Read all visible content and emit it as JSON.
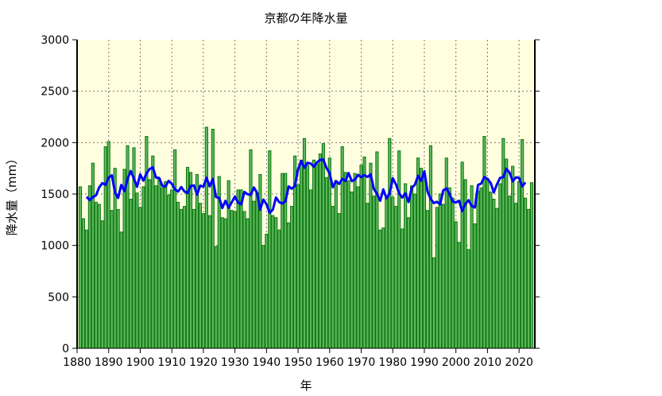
{
  "chart_data": {
    "type": "bar",
    "title": "京都の年降水量",
    "xlabel": "年",
    "ylabel": "降水量（mm）",
    "xlim": [
      1880,
      2025
    ],
    "ylim": [
      0,
      3000
    ],
    "xticks": [
      1880,
      1890,
      1900,
      1910,
      1920,
      1930,
      1940,
      1950,
      1960,
      1970,
      1980,
      1990,
      2000,
      2010,
      2020
    ],
    "yticks": [
      0,
      500,
      1000,
      1500,
      2000,
      2500,
      3000
    ],
    "grid": true,
    "colors": {
      "background": "#ffffe0",
      "bar_fill": "#5cb85c",
      "bar_edge": "#117711",
      "line": "#0000ff"
    },
    "x_start": 1881,
    "values": [
      1570,
      1260,
      1150,
      1580,
      1800,
      1420,
      1400,
      1240,
      1960,
      2010,
      1340,
      1750,
      1350,
      1130,
      1740,
      1970,
      1450,
      1950,
      1510,
      1370,
      1570,
      2060,
      1640,
      1870,
      1580,
      1650,
      1560,
      1620,
      1490,
      1540,
      1930,
      1420,
      1350,
      1380,
      1760,
      1710,
      1350,
      1690,
      1410,
      1310,
      2150,
      1290,
      2130,
      990,
      1670,
      1270,
      1260,
      1630,
      1340,
      1330,
      1540,
      1540,
      1330,
      1260,
      1930,
      1430,
      1510,
      1690,
      1000,
      1110,
      1920,
      1290,
      1270,
      1150,
      1700,
      1700,
      1220,
      1380,
      1870,
      1590,
      1830,
      2040,
      1780,
      1540,
      1830,
      1790,
      1890,
      1990,
      1660,
      1850,
      1380,
      1630,
      1310,
      1960,
      1710,
      1630,
      1520,
      1700,
      1570,
      1780,
      1860,
      1410,
      1800,
      1480,
      1910,
      1150,
      1170,
      1460,
      2040,
      1470,
      1380,
      1920,
      1160,
      1600,
      1270,
      1580,
      1500,
      1850,
      1750,
      1700,
      1340,
      1970,
      880,
      1370,
      1500,
      1400,
      1850,
      1560,
      1460,
      1230,
      1030,
      1810,
      1640,
      960,
      1580,
      1210,
      1530,
      1560,
      2060,
      1650,
      1520,
      1450,
      1360,
      1600,
      2040,
      1840,
      1480,
      1770,
      1410,
      1620,
      2030,
      1460,
      1350,
      1610
    ],
    "moving_average_window": 5
  }
}
